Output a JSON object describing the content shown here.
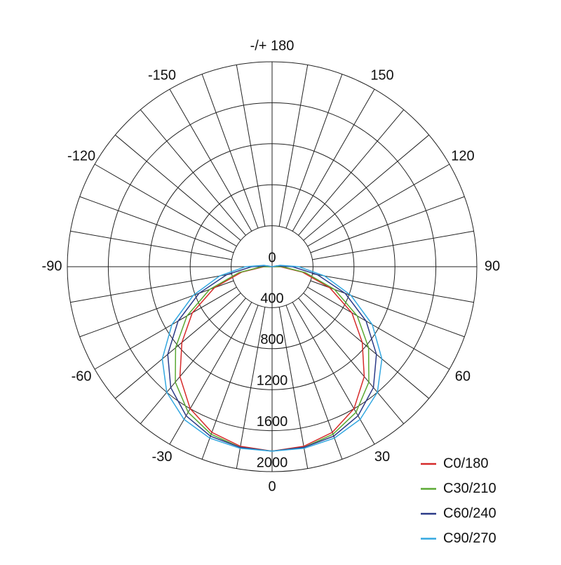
{
  "chart_data": {
    "type": "polar",
    "angles": [
      -110,
      -100,
      -90,
      -80,
      -70,
      -60,
      -50,
      -40,
      -30,
      -20,
      -10,
      0,
      10,
      20,
      30,
      40,
      50,
      60,
      70,
      80,
      90,
      100,
      110
    ],
    "rlim": [
      0,
      2000
    ],
    "rticks": [
      0,
      400,
      800,
      1200,
      1600,
      2000
    ],
    "thetaticks": [
      {
        "value": 180,
        "label": "-/+ 180"
      },
      150,
      120,
      90,
      60,
      30,
      0,
      -30,
      -60,
      -90,
      -120,
      -150
    ],
    "series": [
      {
        "name": "C0/180",
        "color": "#d62a2a",
        "values": [
          0,
          0,
          80,
          300,
          600,
          900,
          1150,
          1400,
          1600,
          1720,
          1780,
          1800,
          1780,
          1720,
          1600,
          1400,
          1150,
          900,
          600,
          300,
          80,
          0,
          0
        ]
      },
      {
        "name": "C30/210",
        "color": "#5aa832",
        "values": [
          0,
          0,
          100,
          330,
          650,
          960,
          1230,
          1470,
          1640,
          1740,
          1790,
          1800,
          1790,
          1740,
          1640,
          1470,
          1230,
          960,
          650,
          330,
          100,
          0,
          0
        ]
      },
      {
        "name": "C60/240",
        "color": "#2b3a87",
        "values": [
          0,
          50,
          200,
          450,
          760,
          1060,
          1330,
          1540,
          1680,
          1760,
          1790,
          1800,
          1790,
          1760,
          1680,
          1540,
          1330,
          1060,
          760,
          450,
          200,
          50,
          0
        ]
      },
      {
        "name": "C90/270",
        "color": "#33a7e0",
        "values": [
          0,
          80,
          260,
          520,
          820,
          1130,
          1400,
          1600,
          1720,
          1780,
          1800,
          1800,
          1800,
          1780,
          1720,
          1600,
          1400,
          1130,
          820,
          520,
          260,
          80,
          0
        ]
      }
    ]
  }
}
